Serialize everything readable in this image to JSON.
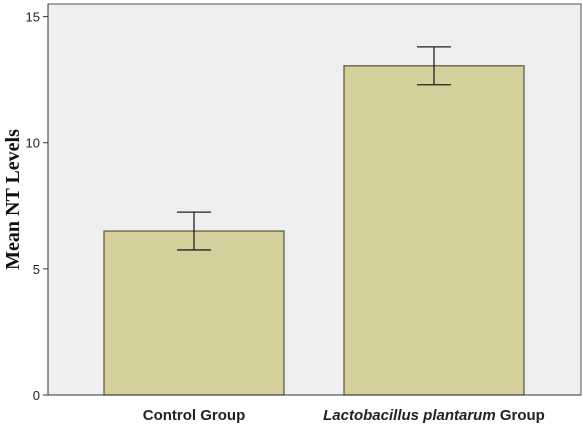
{
  "chart_data": {
    "type": "bar",
    "title": "",
    "xlabel": "",
    "ylabel": "Mean NT Levels",
    "ylim": [
      0,
      15
    ],
    "yticks": [
      0,
      5,
      10,
      15
    ],
    "grid": false,
    "categories": [
      {
        "label": "Control Group",
        "italic": "",
        "rest": ""
      },
      {
        "label": "Lactobacillus plantarum Group",
        "italic": "Lactobacillus plantarum",
        "rest": " Group"
      }
    ],
    "values": [
      6.5,
      13.05
    ],
    "error_low": [
      5.75,
      12.3
    ],
    "error_high": [
      7.25,
      13.8
    ],
    "colors": {
      "bar_fill": "#d5cf9c",
      "bar_stroke": "#55533a",
      "plot_background": "#efefef",
      "frame": "#555555"
    }
  }
}
